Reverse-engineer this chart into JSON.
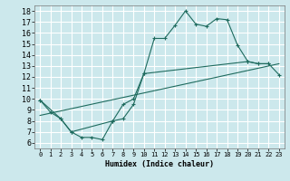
{
  "xlabel": "Humidex (Indice chaleur)",
  "bg_color": "#cce8ec",
  "grid_color": "#ffffff",
  "line_color": "#1e6b5e",
  "xlim": [
    -0.5,
    23.5
  ],
  "ylim": [
    5.5,
    18.5
  ],
  "xticks": [
    0,
    1,
    2,
    3,
    4,
    5,
    6,
    7,
    8,
    9,
    10,
    11,
    12,
    13,
    14,
    15,
    16,
    17,
    18,
    19,
    20,
    21,
    22,
    23
  ],
  "yticks": [
    6,
    7,
    8,
    9,
    10,
    11,
    12,
    13,
    14,
    15,
    16,
    17,
    18
  ],
  "line1_x": [
    0,
    1,
    2,
    3,
    4,
    5,
    6,
    7,
    8,
    9,
    10,
    11,
    12,
    13,
    14,
    15,
    16,
    17,
    18,
    19,
    20,
    21,
    22
  ],
  "line1_y": [
    9.9,
    8.8,
    8.2,
    7.0,
    6.5,
    6.5,
    6.3,
    8.0,
    9.5,
    10.0,
    12.3,
    15.5,
    15.5,
    16.7,
    18.0,
    16.8,
    16.6,
    17.3,
    17.2,
    14.9,
    13.4,
    13.2,
    13.2
  ],
  "line2_x": [
    0,
    2,
    3,
    7,
    8,
    9,
    10,
    20,
    21,
    22,
    23
  ],
  "line2_y": [
    9.9,
    8.2,
    7.0,
    8.0,
    8.2,
    9.5,
    12.3,
    13.4,
    13.2,
    13.2,
    12.2
  ],
  "line3_x": [
    0,
    23
  ],
  "line3_y": [
    8.5,
    13.2
  ]
}
